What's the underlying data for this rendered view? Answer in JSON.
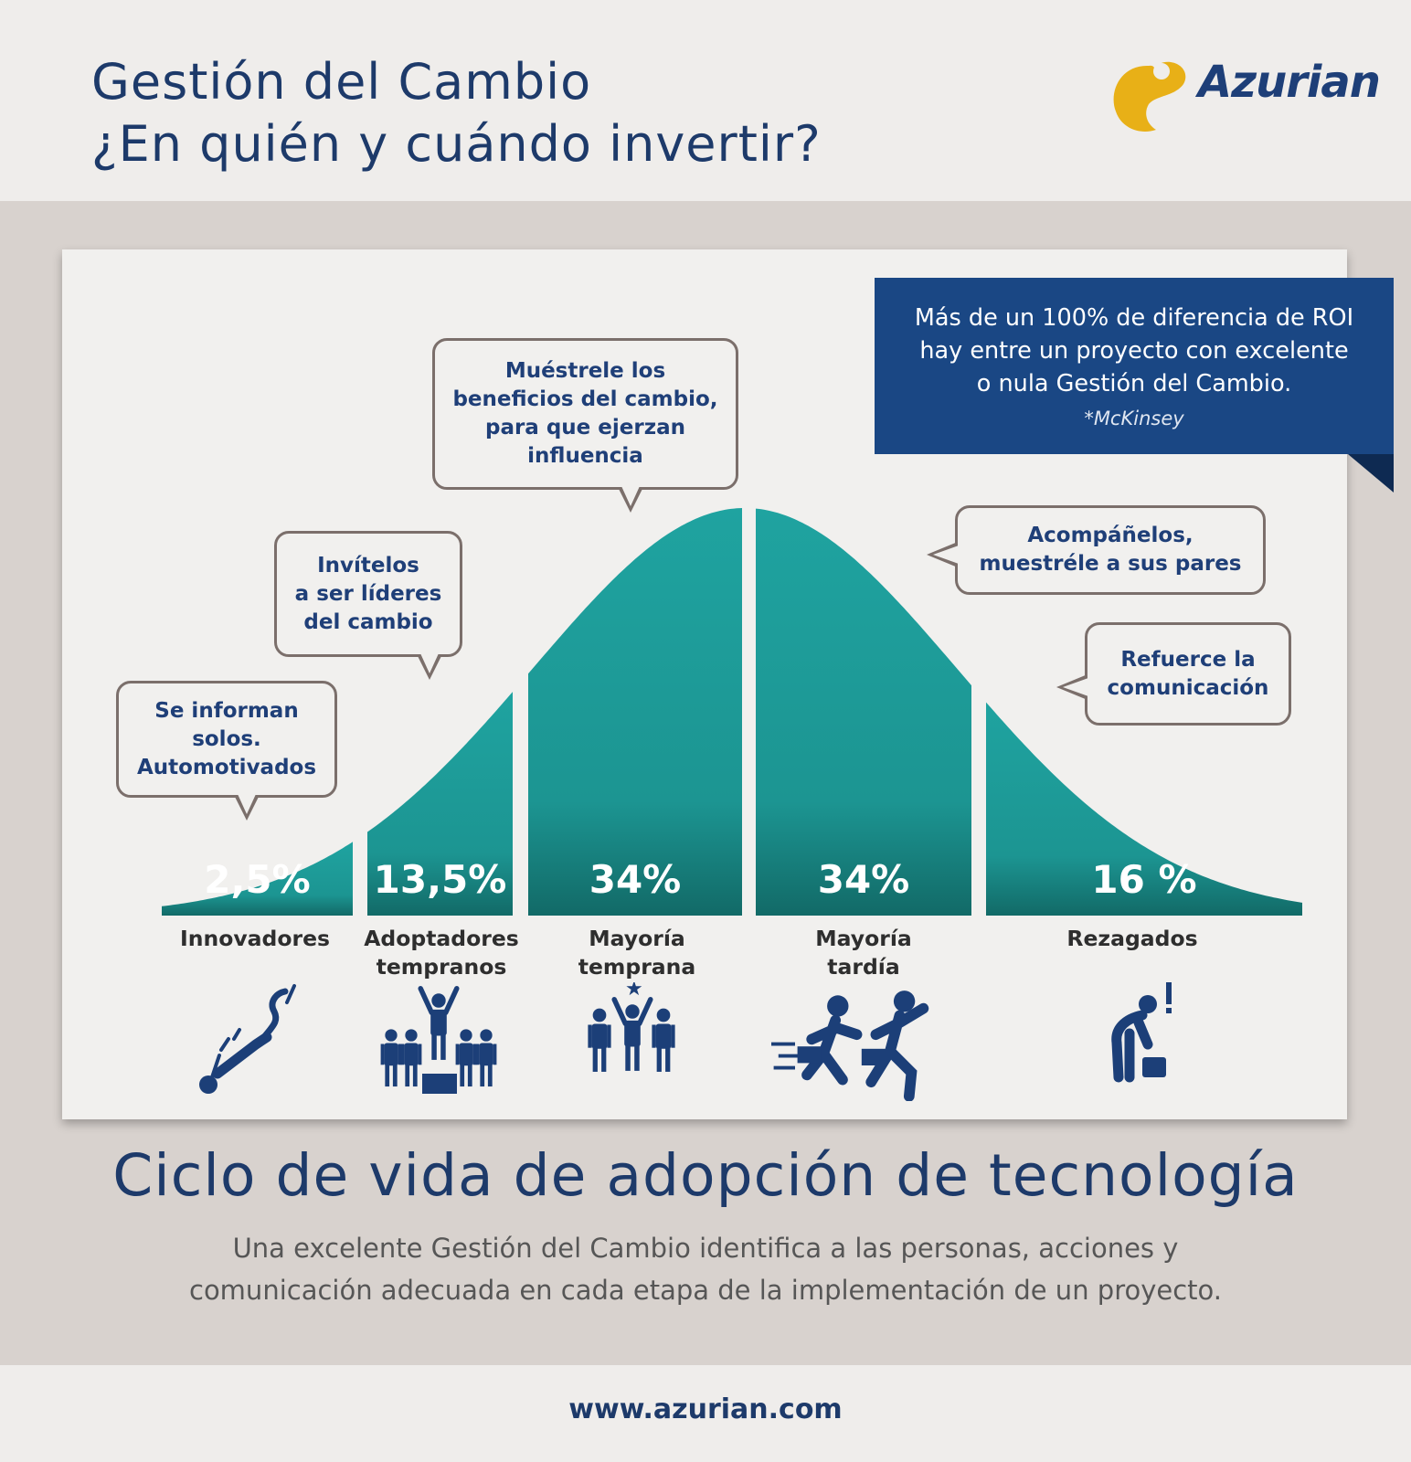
{
  "header": {
    "title_line1": "Gestión del Cambio",
    "title_line2": "¿En quién y cuándo invertir?",
    "logo_text": "Azurian"
  },
  "callout": {
    "text": "Más de un 100% de diferencia de ROI\nhay entre un proyecto con excelente\no nula Gestión del Cambio.",
    "source": "*McKinsey"
  },
  "chart_data": {
    "type": "area",
    "categories": [
      "Innovadores",
      "Adoptadores\ntempranos",
      "Mayoría\ntemprana",
      "Mayoría\ntardía",
      "Rezagados"
    ],
    "values": [
      2.5,
      13.5,
      34,
      34,
      16
    ],
    "value_labels": [
      "2,5%",
      "13,5%",
      "34%",
      "34%",
      "16 %"
    ],
    "advice": [
      "Se informan\nsolos.\nAutomotivados",
      "Invítelos\na ser líderes\ndel cambio",
      "Muéstrele los\nbeneficios del cambio,\npara que ejerzan\ninfluencia",
      "Acompáñelos,\nmuestréle a sus pares",
      "Refuerce la\ncomunicación"
    ],
    "icons": [
      "leaping-person-icon",
      "cheering-leader-icon",
      "group-with-star-icon",
      "running-people-icon",
      "confused-person-icon"
    ]
  },
  "colors": {
    "curve_top": "#1d9e9a",
    "curve_bottom": "#146e6b",
    "navy": "#1d3a6a",
    "icon_navy": "#1c3f78",
    "callout_bg": "#1a4784",
    "logo_gold": "#e8b017"
  },
  "footer": {
    "heading": "Ciclo de vida de adopción de tecnología",
    "description": "Una excelente Gestión del Cambio identifica a las personas, acciones y\ncomunicación adecuada en cada etapa de la implementación de un proyecto.",
    "url": "www.azurian.com"
  }
}
